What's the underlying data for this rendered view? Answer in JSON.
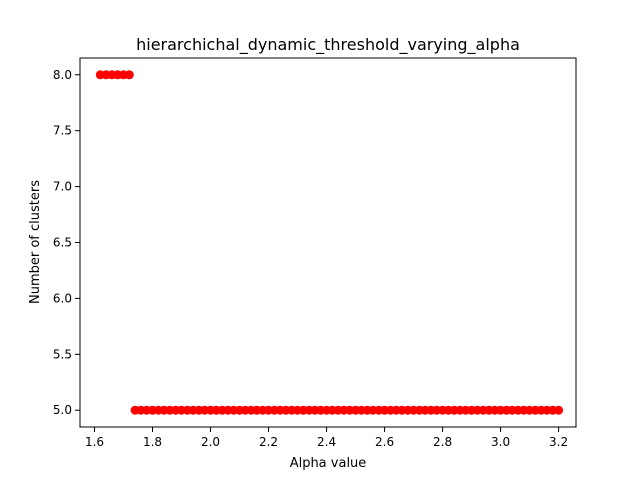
{
  "chart_data": {
    "type": "scatter",
    "title": "hierarchichal_dynamic_threshold_varying_alpha",
    "xlabel": "Alpha value",
    "ylabel": "Number of clusters",
    "xlim": [
      1.55,
      3.26
    ],
    "ylim": [
      4.85,
      8.15
    ],
    "xticks": [
      1.6,
      1.8,
      2.0,
      2.2,
      2.4,
      2.6,
      2.8,
      3.0,
      3.2
    ],
    "xtick_labels": [
      "1.6",
      "1.8",
      "2.0",
      "2.2",
      "2.4",
      "2.6",
      "2.8",
      "3.0",
      "3.2"
    ],
    "yticks": [
      5.0,
      5.5,
      6.0,
      6.5,
      7.0,
      7.5,
      8.0
    ],
    "ytick_labels": [
      "5.0",
      "5.5",
      "6.0",
      "6.5",
      "7.0",
      "7.5",
      "8.0"
    ],
    "grid": false,
    "legend": false,
    "marker_color": "#ff0000",
    "series": [
      {
        "points": {
          "x_start": 1.62,
          "x_end": 3.2,
          "x_step": 0.02,
          "y_rule": [
            {
              "x_max": 1.72,
              "y": 8
            },
            {
              "x_max": 3.2,
              "y": 5
            }
          ]
        }
      }
    ]
  }
}
